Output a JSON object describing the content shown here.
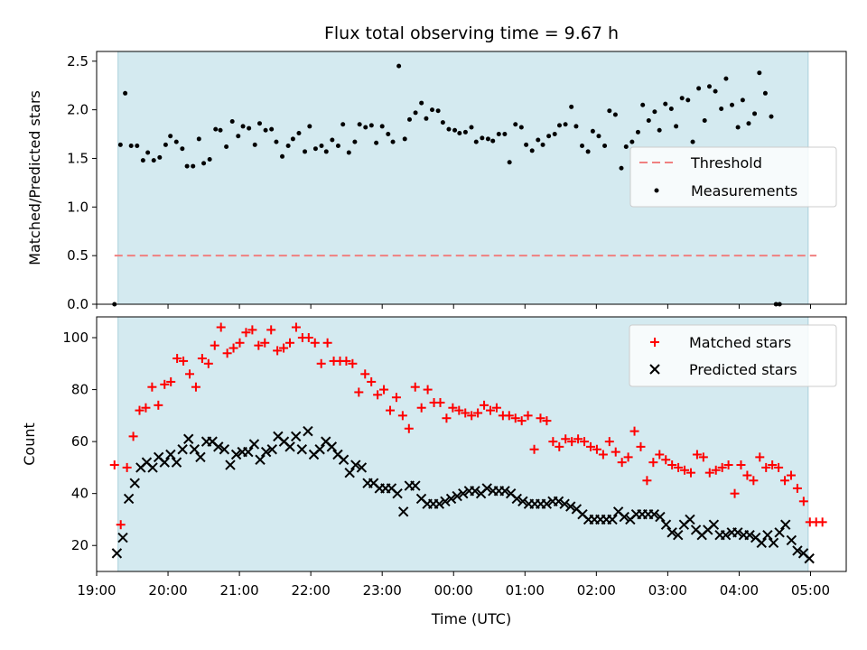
{
  "title": "Flux total observing time = 9.67 h",
  "colors": {
    "shade": "#d4eaf0",
    "shade_edge": "#a9d0da",
    "threshold": "#f08080",
    "measurements": "#000000",
    "matched": "#ff0000",
    "predicted": "#000000"
  },
  "chart_data": [
    {
      "type": "scatter",
      "panel": "top",
      "ylabel": "Matched/Predicted stars",
      "ylim": [
        0,
        2.6
      ],
      "yticks": [
        "0.0",
        "0.5",
        "1.0",
        "1.5",
        "2.0",
        "2.5"
      ],
      "xlim": [
        "19:00",
        "05:30"
      ],
      "legend_position": "center-right",
      "shaded_span": [
        "19:18",
        "04:58"
      ],
      "threshold": {
        "name": "Threshold",
        "value": 0.5,
        "x_range": [
          "19:15",
          "05:05"
        ],
        "style": "dashed"
      },
      "series": [
        {
          "name": "Measurements",
          "marker": "dot",
          "points": [
            [
              "19:15",
              0.0
            ],
            [
              "19:20",
              1.64
            ],
            [
              "19:24",
              2.17
            ],
            [
              "19:29",
              1.63
            ],
            [
              "19:34",
              1.63
            ],
            [
              "19:39",
              1.48
            ],
            [
              "19:43",
              1.56
            ],
            [
              "19:48",
              1.48
            ],
            [
              "19:53",
              1.51
            ],
            [
              "19:58",
              1.64
            ],
            [
              "20:02",
              1.73
            ],
            [
              "20:07",
              1.67
            ],
            [
              "20:12",
              1.6
            ],
            [
              "20:16",
              1.42
            ],
            [
              "20:21",
              1.42
            ],
            [
              "20:26",
              1.7
            ],
            [
              "20:30",
              1.45
            ],
            [
              "20:35",
              1.49
            ],
            [
              "20:40",
              1.8
            ],
            [
              "20:44",
              1.79
            ],
            [
              "20:49",
              1.62
            ],
            [
              "20:54",
              1.88
            ],
            [
              "20:59",
              1.73
            ],
            [
              "21:03",
              1.83
            ],
            [
              "21:08",
              1.81
            ],
            [
              "21:13",
              1.64
            ],
            [
              "21:17",
              1.86
            ],
            [
              "21:22",
              1.79
            ],
            [
              "21:27",
              1.8
            ],
            [
              "21:31",
              1.67
            ],
            [
              "21:36",
              1.52
            ],
            [
              "21:41",
              1.63
            ],
            [
              "21:45",
              1.7
            ],
            [
              "21:50",
              1.76
            ],
            [
              "21:55",
              1.57
            ],
            [
              "21:59",
              1.83
            ],
            [
              "22:04",
              1.6
            ],
            [
              "22:09",
              1.63
            ],
            [
              "22:13",
              1.57
            ],
            [
              "22:18",
              1.69
            ],
            [
              "22:23",
              1.63
            ],
            [
              "22:27",
              1.85
            ],
            [
              "22:32",
              1.56
            ],
            [
              "22:37",
              1.67
            ],
            [
              "22:41",
              1.85
            ],
            [
              "22:46",
              1.82
            ],
            [
              "22:51",
              1.84
            ],
            [
              "22:55",
              1.66
            ],
            [
              "23:00",
              1.83
            ],
            [
              "23:05",
              1.75
            ],
            [
              "23:09",
              1.67
            ],
            [
              "23:14",
              2.45
            ],
            [
              "23:19",
              1.7
            ],
            [
              "23:23",
              1.9
            ],
            [
              "23:28",
              1.97
            ],
            [
              "23:33",
              2.07
            ],
            [
              "23:37",
              1.91
            ],
            [
              "23:42",
              2.0
            ],
            [
              "23:47",
              1.99
            ],
            [
              "23:51",
              1.87
            ],
            [
              "23:56",
              1.8
            ],
            [
              "00:01",
              1.79
            ],
            [
              "00:05",
              1.76
            ],
            [
              "00:10",
              1.77
            ],
            [
              "00:15",
              1.82
            ],
            [
              "00:19",
              1.67
            ],
            [
              "00:24",
              1.71
            ],
            [
              "00:29",
              1.7
            ],
            [
              "00:33",
              1.68
            ],
            [
              "00:38",
              1.75
            ],
            [
              "00:43",
              1.75
            ],
            [
              "00:47",
              1.46
            ],
            [
              "00:52",
              1.85
            ],
            [
              "00:57",
              1.82
            ],
            [
              "01:01",
              1.64
            ],
            [
              "01:06",
              1.58
            ],
            [
              "01:11",
              1.69
            ],
            [
              "01:15",
              1.64
            ],
            [
              "01:20",
              1.73
            ],
            [
              "01:25",
              1.75
            ],
            [
              "01:29",
              1.84
            ],
            [
              "01:34",
              1.85
            ],
            [
              "01:39",
              2.03
            ],
            [
              "01:43",
              1.83
            ],
            [
              "01:48",
              1.63
            ],
            [
              "01:53",
              1.57
            ],
            [
              "01:57",
              1.78
            ],
            [
              "02:02",
              1.73
            ],
            [
              "02:07",
              1.63
            ],
            [
              "02:11",
              1.99
            ],
            [
              "02:16",
              1.95
            ],
            [
              "02:21",
              1.4
            ],
            [
              "02:25",
              1.62
            ],
            [
              "02:30",
              1.67
            ],
            [
              "02:35",
              1.77
            ],
            [
              "02:39",
              2.05
            ],
            [
              "02:44",
              1.89
            ],
            [
              "02:49",
              1.98
            ],
            [
              "02:53",
              1.79
            ],
            [
              "02:58",
              2.06
            ],
            [
              "03:03",
              2.01
            ],
            [
              "03:07",
              1.83
            ],
            [
              "03:12",
              2.12
            ],
            [
              "03:17",
              2.1
            ],
            [
              "03:21",
              1.67
            ],
            [
              "03:26",
              2.22
            ],
            [
              "03:31",
              1.89
            ],
            [
              "03:35",
              2.24
            ],
            [
              "03:40",
              2.19
            ],
            [
              "03:45",
              2.01
            ],
            [
              "03:49",
              2.32
            ],
            [
              "03:54",
              2.05
            ],
            [
              "03:59",
              1.82
            ],
            [
              "04:03",
              2.1
            ],
            [
              "04:08",
              1.86
            ],
            [
              "04:13",
              1.96
            ],
            [
              "04:17",
              2.38
            ],
            [
              "04:22",
              2.17
            ],
            [
              "04:27",
              1.93
            ],
            [
              "04:31",
              0.0
            ],
            [
              "04:34",
              0.0
            ]
          ]
        }
      ]
    },
    {
      "type": "scatter",
      "panel": "bottom",
      "xlabel": "Time (UTC)",
      "ylabel": "Count",
      "ylim": [
        10,
        108
      ],
      "yticks": [
        "20",
        "40",
        "60",
        "80",
        "100"
      ],
      "xlim": [
        "19:00",
        "05:30"
      ],
      "xticks": [
        "19:00",
        "20:00",
        "21:00",
        "22:00",
        "23:00",
        "00:00",
        "01:00",
        "02:00",
        "03:00",
        "04:00",
        "05:00"
      ],
      "legend_position": "top-right",
      "shaded_span": [
        "19:18",
        "04:58"
      ],
      "series": [
        {
          "name": "Matched stars",
          "marker": "plus",
          "values": [
            51,
            28,
            50,
            62,
            72,
            73,
            81,
            74,
            82,
            83,
            92,
            91,
            86,
            81,
            92,
            90,
            97,
            104,
            94,
            96,
            98,
            102,
            103,
            97,
            98,
            103,
            95,
            96,
            98,
            104,
            100,
            100,
            98,
            90,
            98,
            91,
            91,
            91,
            90,
            79,
            86,
            83,
            78,
            80,
            72,
            77,
            70,
            65,
            81,
            73,
            80,
            75,
            75,
            69,
            73,
            72,
            71,
            70,
            71,
            74,
            72,
            73,
            70,
            70,
            69,
            68,
            70,
            57,
            69,
            68,
            60,
            58,
            61,
            60,
            61,
            60,
            58,
            57,
            55,
            60,
            56,
            52,
            54,
            64,
            58,
            45,
            52,
            55,
            53,
            51,
            50,
            49,
            48,
            55,
            54,
            48,
            49,
            50,
            51,
            40,
            51,
            47,
            45,
            54,
            50,
            51,
            50,
            45,
            47,
            42,
            37,
            29,
            29,
            29
          ]
        },
        {
          "name": "Predicted stars",
          "marker": "x",
          "values": [
            17,
            23,
            38,
            44,
            50,
            52,
            50,
            54,
            52,
            55,
            52,
            57,
            61,
            57,
            54,
            60,
            60,
            58,
            57,
            51,
            55,
            56,
            56,
            59,
            53,
            56,
            57,
            62,
            60,
            58,
            62,
            57,
            64,
            55,
            57,
            60,
            58,
            55,
            53,
            48,
            51,
            50,
            44,
            44,
            42,
            42,
            42,
            40,
            33,
            43,
            43,
            38,
            36,
            36,
            36,
            37,
            38,
            39,
            40,
            41,
            41,
            40,
            42,
            41,
            41,
            41,
            40,
            38,
            37,
            36,
            36,
            36,
            36,
            37,
            37,
            36,
            35,
            34,
            32,
            30,
            30,
            30,
            30,
            30,
            33,
            31,
            30,
            32,
            32,
            32,
            32,
            31,
            28,
            25,
            24,
            28,
            30,
            26,
            24,
            26,
            28,
            24,
            24,
            25,
            25,
            24,
            24,
            23,
            21,
            24,
            21,
            25,
            28,
            22,
            18,
            17,
            15
          ]
        }
      ]
    }
  ]
}
